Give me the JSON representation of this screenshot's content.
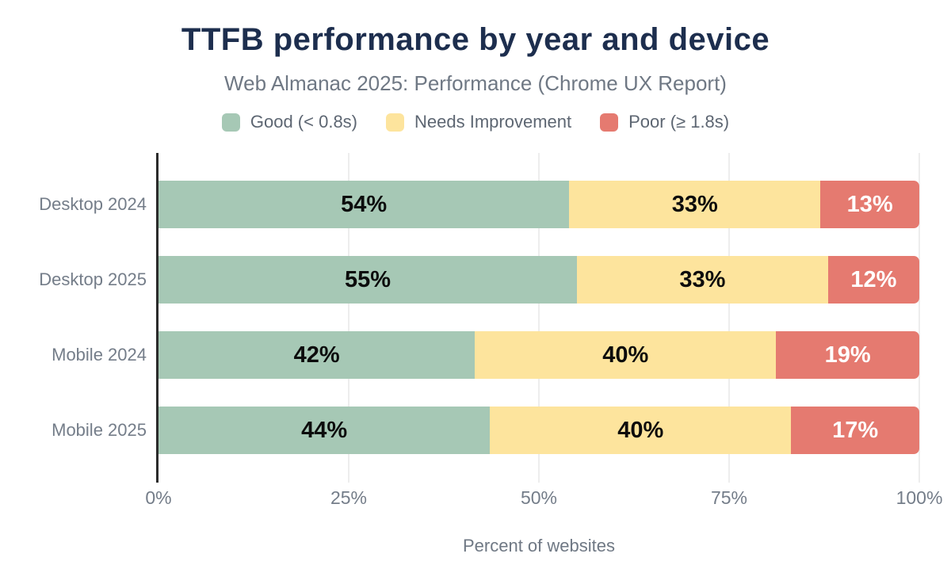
{
  "chart_data": {
    "type": "bar",
    "orientation": "horizontal",
    "stacked": true,
    "title": "TTFB performance by year and device",
    "subtitle": "Web Almanac 2025: Performance (Chrome UX Report)",
    "xlabel": "Percent of websites",
    "categories": [
      "Desktop 2024",
      "Desktop 2025",
      "Mobile 2024",
      "Mobile 2025"
    ],
    "series": [
      {
        "name": "Good (< 0.8s)",
        "color": "#a6c8b5",
        "label_color": "#0c0c0c",
        "values": [
          54,
          55,
          42,
          44
        ]
      },
      {
        "name": "Needs Improvement",
        "color": "#fde49d",
        "label_color": "#0c0c0c",
        "values": [
          33,
          33,
          40,
          40
        ]
      },
      {
        "name": "Poor (≥ 1.8s)",
        "color": "#e57a70",
        "label_color": "#ffffff",
        "values": [
          13,
          12,
          19,
          17
        ]
      }
    ],
    "value_suffix": "%",
    "x_ticks": [
      "0%",
      "25%",
      "50%",
      "75%",
      "100%"
    ],
    "xlim": [
      0,
      100
    ],
    "legend_position": "top",
    "grid": "vertical",
    "colors": {
      "title": "#1d2e4e",
      "subtitle": "#6f7884",
      "axis_text": "#747d89",
      "axis_line": "#2b2b2b",
      "gridline": "#ededed",
      "background": "#ffffff"
    }
  }
}
